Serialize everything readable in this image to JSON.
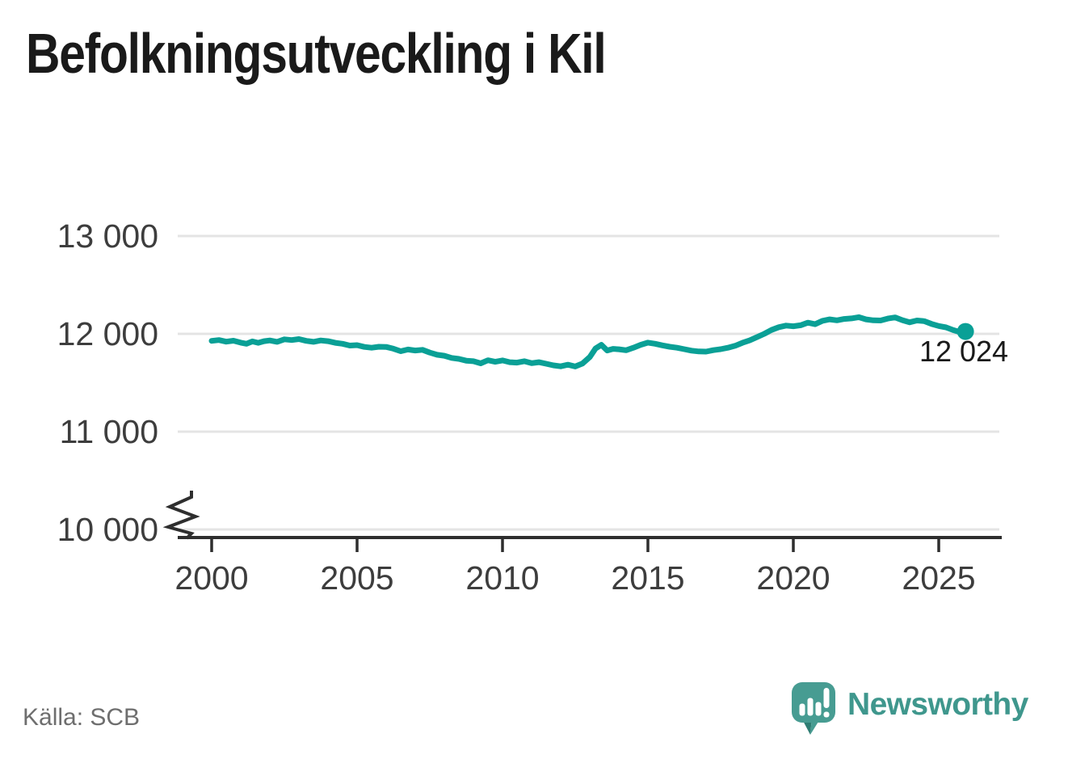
{
  "title": "Befolkningsutveckling i Kil",
  "source": "Källa: SCB",
  "brand": {
    "name": "Newsworthy"
  },
  "colors": {
    "line": "#0aa096",
    "brand_text": "#3f978d",
    "logo_bubble": "#479c92",
    "logo_shadow": "#2e7d73",
    "grid": "#e4e4e4",
    "axis": "#2e2e2e",
    "title_text": "#1a1a1a",
    "axis_text": "#3d3d3d",
    "muted_text": "#6e6e6e"
  },
  "axes": {
    "y_tick_labels": [
      "13 000",
      "12 000",
      "11 000",
      "10 000"
    ],
    "x_tick_labels": [
      "2000",
      "2005",
      "2010",
      "2015",
      "2020",
      "2025"
    ],
    "y_axis_break_above_zero": true
  },
  "chart_data": {
    "type": "line",
    "title": "Befolkningsutveckling i Kil",
    "xlabel": "",
    "ylabel": "",
    "legend_position": "none",
    "grid": "horizontal",
    "x_ticks": [
      2000,
      2005,
      2010,
      2015,
      2020,
      2025
    ],
    "y_ticks": [
      13000,
      12000,
      11000,
      10000
    ],
    "ylim_displayed": [
      10000,
      13000
    ],
    "axis_break_below": 10000,
    "x_range": [
      2000,
      2025.92
    ],
    "line_color": "#0aa096",
    "end_label": "12 024",
    "end_point": [
      2025.92,
      12024
    ],
    "series": [
      {
        "points": [
          [
            2000.0,
            11928
          ],
          [
            2000.25,
            11936
          ],
          [
            2000.5,
            11920
          ],
          [
            2000.75,
            11930
          ],
          [
            2001.0,
            11910
          ],
          [
            2001.2,
            11898
          ],
          [
            2001.4,
            11922
          ],
          [
            2001.6,
            11908
          ],
          [
            2001.8,
            11925
          ],
          [
            2002.0,
            11932
          ],
          [
            2002.25,
            11918
          ],
          [
            2002.5,
            11944
          ],
          [
            2002.75,
            11936
          ],
          [
            2003.0,
            11946
          ],
          [
            2003.25,
            11928
          ],
          [
            2003.5,
            11918
          ],
          [
            2003.75,
            11932
          ],
          [
            2004.0,
            11925
          ],
          [
            2004.25,
            11908
          ],
          [
            2004.5,
            11898
          ],
          [
            2004.75,
            11880
          ],
          [
            2005.0,
            11884
          ],
          [
            2005.25,
            11866
          ],
          [
            2005.5,
            11858
          ],
          [
            2005.75,
            11868
          ],
          [
            2006.0,
            11866
          ],
          [
            2006.25,
            11848
          ],
          [
            2006.5,
            11822
          ],
          [
            2006.75,
            11840
          ],
          [
            2007.0,
            11830
          ],
          [
            2007.25,
            11836
          ],
          [
            2007.5,
            11808
          ],
          [
            2007.75,
            11786
          ],
          [
            2008.0,
            11776
          ],
          [
            2008.25,
            11754
          ],
          [
            2008.5,
            11744
          ],
          [
            2008.75,
            11726
          ],
          [
            2009.0,
            11720
          ],
          [
            2009.25,
            11698
          ],
          [
            2009.5,
            11730
          ],
          [
            2009.75,
            11714
          ],
          [
            2010.0,
            11728
          ],
          [
            2010.25,
            11710
          ],
          [
            2010.5,
            11706
          ],
          [
            2010.75,
            11720
          ],
          [
            2011.0,
            11700
          ],
          [
            2011.25,
            11710
          ],
          [
            2011.5,
            11694
          ],
          [
            2011.75,
            11678
          ],
          [
            2012.0,
            11668
          ],
          [
            2012.25,
            11684
          ],
          [
            2012.5,
            11666
          ],
          [
            2012.75,
            11696
          ],
          [
            2013.0,
            11762
          ],
          [
            2013.2,
            11850
          ],
          [
            2013.4,
            11888
          ],
          [
            2013.6,
            11830
          ],
          [
            2013.8,
            11846
          ],
          [
            2014.0,
            11842
          ],
          [
            2014.25,
            11832
          ],
          [
            2014.5,
            11858
          ],
          [
            2014.75,
            11888
          ],
          [
            2015.0,
            11910
          ],
          [
            2015.25,
            11898
          ],
          [
            2015.5,
            11882
          ],
          [
            2015.75,
            11868
          ],
          [
            2016.0,
            11858
          ],
          [
            2016.25,
            11843
          ],
          [
            2016.5,
            11828
          ],
          [
            2016.75,
            11820
          ],
          [
            2017.0,
            11818
          ],
          [
            2017.25,
            11833
          ],
          [
            2017.5,
            11843
          ],
          [
            2017.75,
            11858
          ],
          [
            2018.0,
            11878
          ],
          [
            2018.25,
            11908
          ],
          [
            2018.5,
            11933
          ],
          [
            2018.75,
            11966
          ],
          [
            2019.0,
            12000
          ],
          [
            2019.25,
            12040
          ],
          [
            2019.5,
            12068
          ],
          [
            2019.75,
            12084
          ],
          [
            2020.0,
            12078
          ],
          [
            2020.25,
            12088
          ],
          [
            2020.5,
            12114
          ],
          [
            2020.75,
            12098
          ],
          [
            2021.0,
            12133
          ],
          [
            2021.25,
            12148
          ],
          [
            2021.5,
            12138
          ],
          [
            2021.75,
            12152
          ],
          [
            2022.0,
            12158
          ],
          [
            2022.25,
            12170
          ],
          [
            2022.5,
            12148
          ],
          [
            2022.75,
            12138
          ],
          [
            2023.0,
            12136
          ],
          [
            2023.25,
            12156
          ],
          [
            2023.5,
            12168
          ],
          [
            2023.75,
            12140
          ],
          [
            2024.0,
            12118
          ],
          [
            2024.25,
            12136
          ],
          [
            2024.5,
            12130
          ],
          [
            2024.75,
            12102
          ],
          [
            2025.0,
            12080
          ],
          [
            2025.25,
            12066
          ],
          [
            2025.5,
            12038
          ],
          [
            2025.75,
            12016
          ],
          [
            2025.92,
            12024
          ]
        ]
      }
    ]
  }
}
